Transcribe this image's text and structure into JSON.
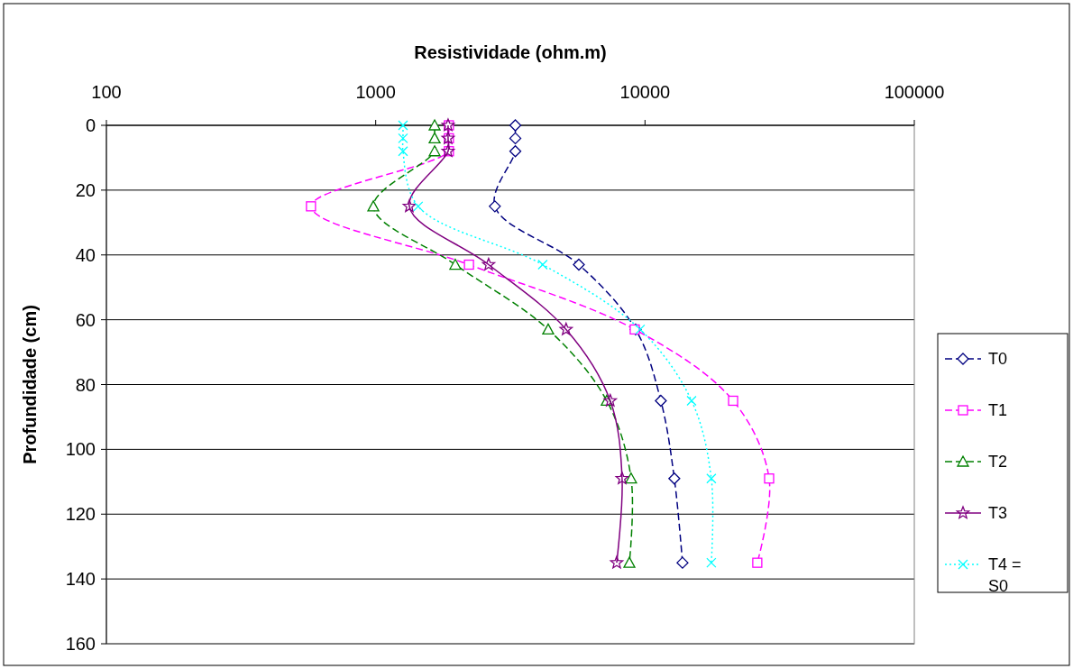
{
  "chart_data": {
    "type": "line",
    "xlabel": "Resistividade (ohm.m)",
    "ylabel": "Profundidade (cm)",
    "log": "x",
    "xlim": [
      100,
      100000
    ],
    "xticks": [
      100,
      1000,
      10000,
      100000
    ],
    "ylim": [
      160,
      0
    ],
    "yticks": [
      0,
      20,
      40,
      60,
      80,
      100,
      120,
      140,
      160
    ],
    "grid": "y",
    "legend": "right",
    "series": [
      {
        "name": "T0",
        "color": "#000080",
        "marker": "diamond",
        "line_style": "dashed",
        "x": [
          3300,
          3300,
          3300,
          2770,
          5680,
          9230,
          11450,
          12850,
          13780
        ],
        "values": [
          0,
          4,
          8,
          25,
          43,
          63,
          85,
          109,
          135
        ]
      },
      {
        "name": "T1",
        "color": "#ff00ff",
        "marker": "square",
        "line_style": "dashed",
        "x": [
          1870,
          1870,
          1870,
          575,
          2220,
          9160,
          21240,
          28900,
          26120
        ],
        "values": [
          0,
          4,
          8,
          25,
          43,
          63,
          85,
          109,
          135
        ]
      },
      {
        "name": "T2",
        "color": "#008000",
        "marker": "triangle",
        "line_style": "dashed",
        "x": [
          1655,
          1655,
          1655,
          980,
          1975,
          4370,
          7210,
          8880,
          8750
        ],
        "values": [
          0,
          4,
          8,
          25,
          43,
          63,
          85,
          109,
          135
        ]
      },
      {
        "name": "T3",
        "color": "#800080",
        "marker": "star",
        "line_style": "solid",
        "x": [
          1857,
          1857,
          1857,
          1333,
          2626,
          5094,
          7430,
          8220,
          7850
        ],
        "values": [
          0,
          4,
          8,
          25,
          43,
          63,
          85,
          109,
          135
        ]
      },
      {
        "name": "T4 = S0",
        "color": "#00ffff",
        "marker": "cross",
        "line_style": "dotted",
        "x": [
          1263,
          1263,
          1263,
          1438,
          4170,
          9590,
          14890,
          17630,
          17630
        ],
        "values": [
          0,
          4,
          8,
          25,
          43,
          63,
          85,
          109,
          135
        ]
      }
    ]
  }
}
